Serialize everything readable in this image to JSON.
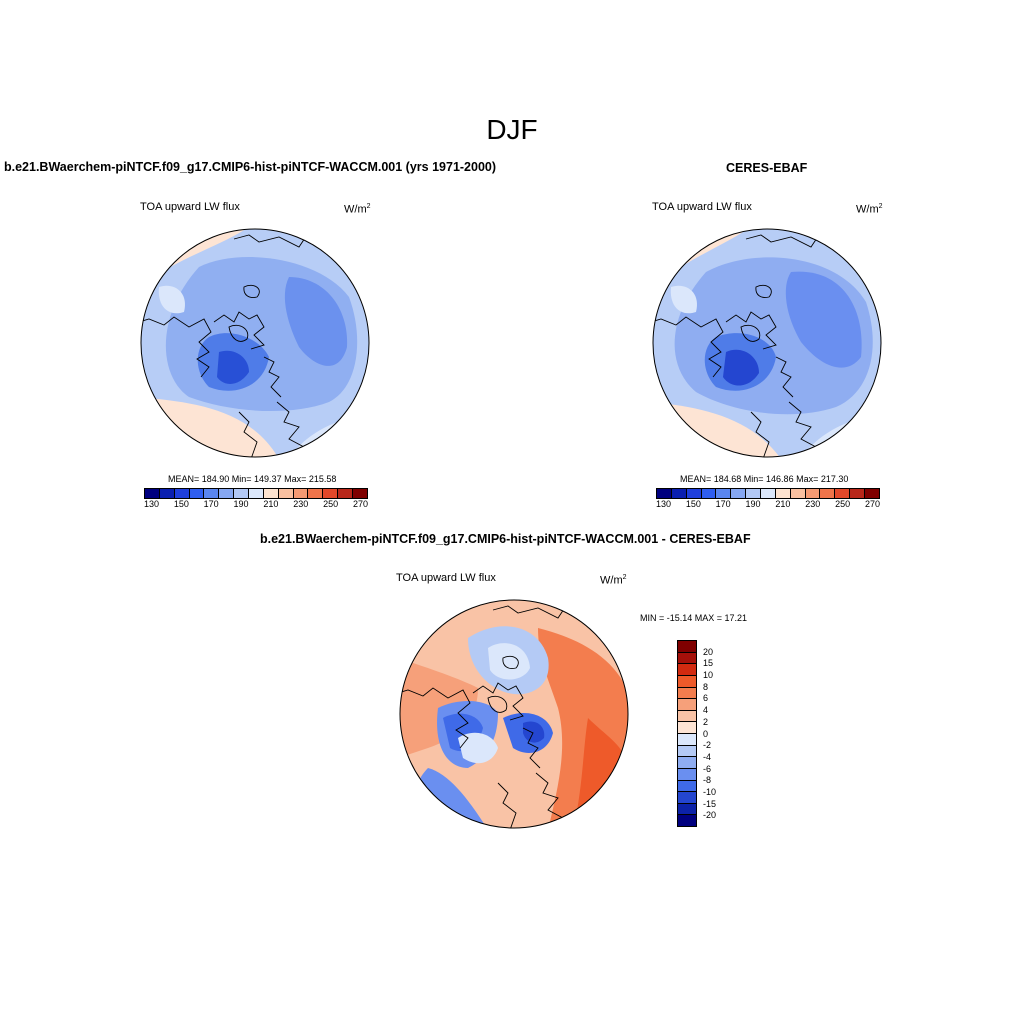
{
  "figure": {
    "season": "DJF"
  },
  "panels": {
    "model": {
      "title": "b.e21.BWaerchem-piNTCF.f09_g17.CMIP6-hist-piNTCF-WACCM.001 (yrs 1971-2000)",
      "variable": "TOA upward LW flux",
      "unit_base": "W/m",
      "unit_exp": "2",
      "stats": "MEAN= 184.90   Min= 149.37   Max= 215.58"
    },
    "obs": {
      "title": "CERES-EBAF",
      "variable": "TOA upward LW flux",
      "unit_base": "W/m",
      "unit_exp": "2",
      "stats": "MEAN= 184.68   Min= 146.86   Max= 217.30"
    },
    "diff": {
      "title": "b.e21.BWaerchem-piNTCF.f09_g17.CMIP6-hist-piNTCF-WACCM.001 - CERES-EBAF",
      "variable": "TOA upward LW flux",
      "unit_base": "W/m",
      "unit_exp": "2",
      "stats": "MIN = -15.14 MAX =  17.21"
    }
  },
  "colorbar_abs": {
    "colors": [
      "#00007f",
      "#0a1fb0",
      "#1f3fdc",
      "#2f5ef0",
      "#5a86f0",
      "#86a7f2",
      "#b2c8f5",
      "#dbe7fb",
      "#fde3d0",
      "#f9c0a0",
      "#f59a73",
      "#f0744a",
      "#e2482a",
      "#b8271a",
      "#7f0000"
    ],
    "tick_labels": [
      "130",
      "150",
      "170",
      "190",
      "210",
      "230",
      "250",
      "270"
    ]
  },
  "colorbar_diff": {
    "colors_top_to_bottom": [
      "#7f0000",
      "#a5100a",
      "#d22a10",
      "#ee5a2a",
      "#f37d4e",
      "#f6a07a",
      "#f9c3a6",
      "#fde4d4",
      "#dbe7fb",
      "#b4caf5",
      "#8fadf1",
      "#6a8ff0",
      "#3f6ae8",
      "#2446d0",
      "#0c22a8",
      "#00007f"
    ],
    "tick_labels": [
      "20",
      "15",
      "10",
      "8",
      "6",
      "4",
      "2",
      "0",
      "-2",
      "-4",
      "-6",
      "-8",
      "-10",
      "-15",
      "-20"
    ]
  }
}
